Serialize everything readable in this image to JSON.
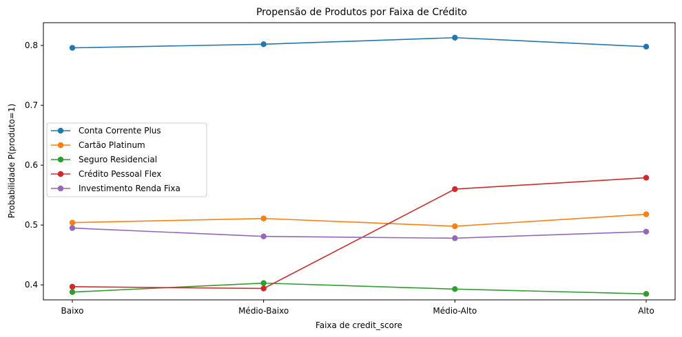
{
  "chart_data": {
    "type": "line",
    "title": "Propensão de Produtos por Faixa de Crédito",
    "xlabel": "Faixa de credit_score",
    "ylabel": "Probabilidade P(produto=1)",
    "categories": [
      "Baixo",
      "Médio-Baixo",
      "Médio-Alto",
      "Alto"
    ],
    "ylim": [
      0.375,
      0.838
    ],
    "yticks": [
      0.4,
      0.5,
      0.6,
      0.7,
      0.8
    ],
    "ytick_labels": [
      "0.4",
      "0.5",
      "0.6",
      "0.7",
      "0.8"
    ],
    "grid": false,
    "legend_position": "center-left",
    "series": [
      {
        "name": "Conta Corrente Plus",
        "color": "#1f77b4",
        "values": [
          0.796,
          0.802,
          0.813,
          0.798
        ]
      },
      {
        "name": "Cartão Platinum",
        "color": "#ff7f0e",
        "values": [
          0.504,
          0.511,
          0.498,
          0.518
        ]
      },
      {
        "name": "Seguro Residencial",
        "color": "#2ca02c",
        "values": [
          0.388,
          0.403,
          0.393,
          0.385
        ]
      },
      {
        "name": "Crédito Pessoal Flex",
        "color": "#d62728",
        "values": [
          0.397,
          0.394,
          0.56,
          0.579
        ]
      },
      {
        "name": "Investimento Renda Fixa",
        "color": "#9467bd",
        "values": [
          0.495,
          0.481,
          0.478,
          0.489
        ]
      }
    ]
  }
}
